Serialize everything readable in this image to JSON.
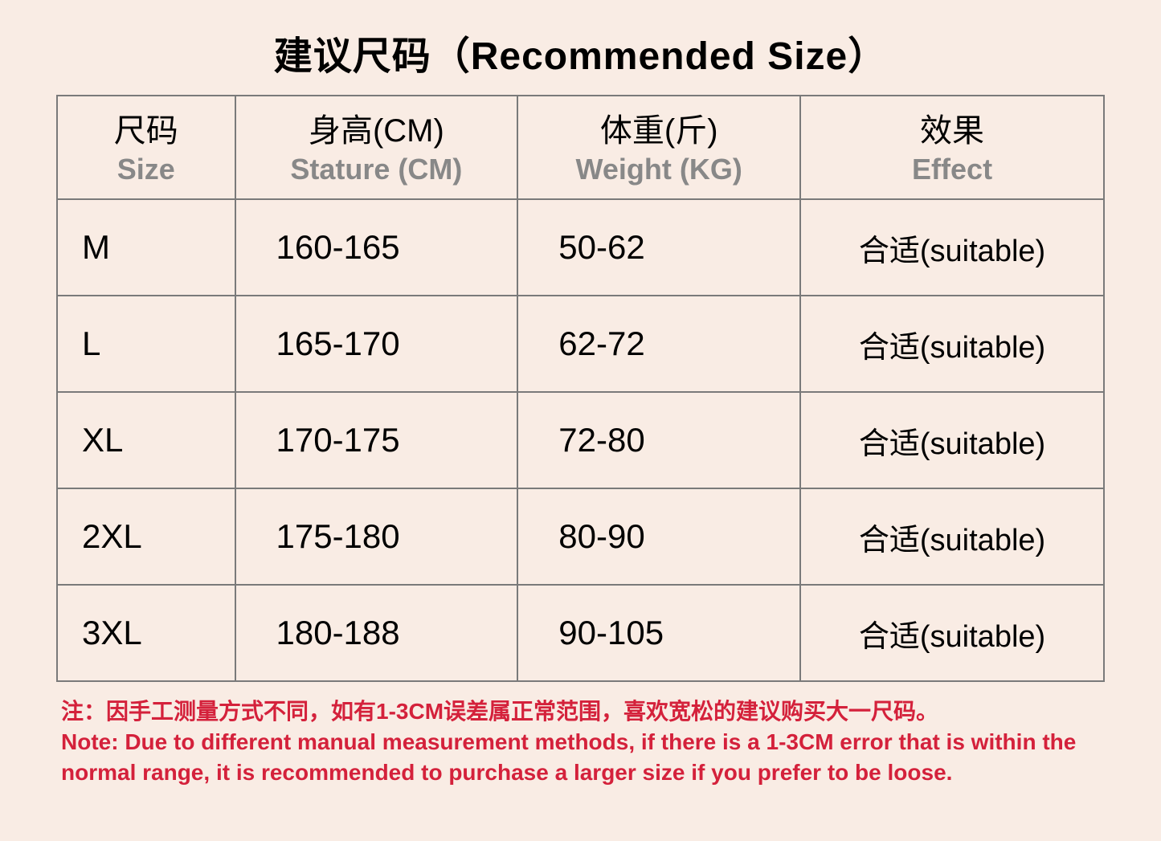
{
  "title": "建议尺码（Recommended Size）",
  "table": {
    "columns": [
      {
        "cn": "尺码",
        "en": "Size"
      },
      {
        "cn": "身高(CM)",
        "en": "Stature (CM)"
      },
      {
        "cn": "体重(斤)",
        "en": "Weight (KG)"
      },
      {
        "cn": "效果",
        "en": "Effect"
      }
    ],
    "rows": [
      {
        "size": "M",
        "stature": "160-165",
        "weight": "50-62",
        "effect": "合适(suitable)"
      },
      {
        "size": "L",
        "stature": "165-170",
        "weight": "62-72",
        "effect": "合适(suitable)"
      },
      {
        "size": "XL",
        "stature": "170-175",
        "weight": "72-80",
        "effect": "合适(suitable)"
      },
      {
        "size": "2XL",
        "stature": "175-180",
        "weight": "80-90",
        "effect": "合适(suitable)"
      },
      {
        "size": "3XL",
        "stature": "180-188",
        "weight": "90-105",
        "effect": "合适(suitable)"
      }
    ],
    "column_widths_pct": [
      17,
      27,
      27,
      29
    ],
    "border_color": "#7a7a7a",
    "header_cn_color": "#000000",
    "header_en_color": "#888888",
    "cell_font_color": "#000000",
    "header_cn_fontsize": 40,
    "header_en_fontsize": 36,
    "cell_fontsize": 42,
    "effect_fontsize": 38
  },
  "note": {
    "cn": "注：因手工测量方式不同，如有1-3CM误差属正常范围，喜欢宽松的建议购买大一尺码。",
    "en": "Note: Due to different manual measurement methods, if there is a 1-3CM error that is within the normal range, it is recommended to purchase a larger size if you prefer to be loose.",
    "color": "#d4213b",
    "fontsize": 28,
    "fontweight": 700
  },
  "page": {
    "background_color": "#f9ece4",
    "title_fontsize": 48,
    "title_fontweight": 700,
    "title_color": "#000000"
  }
}
